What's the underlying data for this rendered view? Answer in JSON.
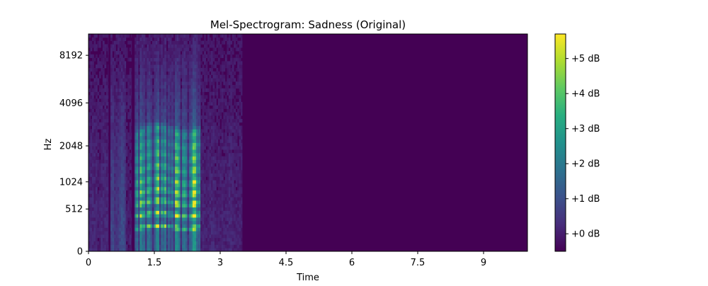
{
  "chart_data": {
    "type": "heatmap",
    "title": "Mel-Spectrogram: Sadness (Original)",
    "xlabel": "Time",
    "ylabel": "Hz",
    "x_ticks": [
      {
        "value": 0,
        "label": "0"
      },
      {
        "value": 1.5,
        "label": "1.5"
      },
      {
        "value": 3,
        "label": "3"
      },
      {
        "value": 4.5,
        "label": "4.5"
      },
      {
        "value": 6,
        "label": "6"
      },
      {
        "value": 7.5,
        "label": "7.5"
      },
      {
        "value": 9,
        "label": "9"
      }
    ],
    "xlim": [
      0,
      10
    ],
    "y_scale": "mel",
    "y_ticks": [
      {
        "value": 0,
        "label": "0"
      },
      {
        "value": 512,
        "label": "512"
      },
      {
        "value": 1024,
        "label": "1024"
      },
      {
        "value": 2048,
        "label": "2048"
      },
      {
        "value": 4096,
        "label": "4096"
      },
      {
        "value": 8192,
        "label": "8192"
      }
    ],
    "ylim": [
      0,
      11025
    ],
    "colormap": "viridis",
    "colorbar": {
      "range": [
        -0.5,
        5.7
      ],
      "ticks": [
        {
          "value": 0,
          "label": "+0 dB"
        },
        {
          "value": 1,
          "label": "+1 dB"
        },
        {
          "value": 2,
          "label": "+2 dB"
        },
        {
          "value": 3,
          "label": "+3 dB"
        },
        {
          "value": 4,
          "label": "+4 dB"
        },
        {
          "value": 5,
          "label": "+5 dB"
        }
      ]
    },
    "speech_segments": [
      {
        "t_start": 0.0,
        "t_end": 0.45,
        "level": 0.6
      },
      {
        "t_start": 0.5,
        "t_end": 0.85,
        "level": 1.8
      },
      {
        "t_start": 0.85,
        "t_end": 0.98,
        "level": 0.3
      },
      {
        "t_start": 1.05,
        "t_end": 2.55,
        "level": 3.6
      },
      {
        "t_start": 2.55,
        "t_end": 3.5,
        "level": 0.5
      }
    ],
    "harmonic_bands_hz": [
      260,
      430,
      620,
      820,
      1050,
      1350,
      1700,
      2100,
      2600
    ],
    "colors": {
      "background": "#440154",
      "axis": "#000000"
    }
  }
}
